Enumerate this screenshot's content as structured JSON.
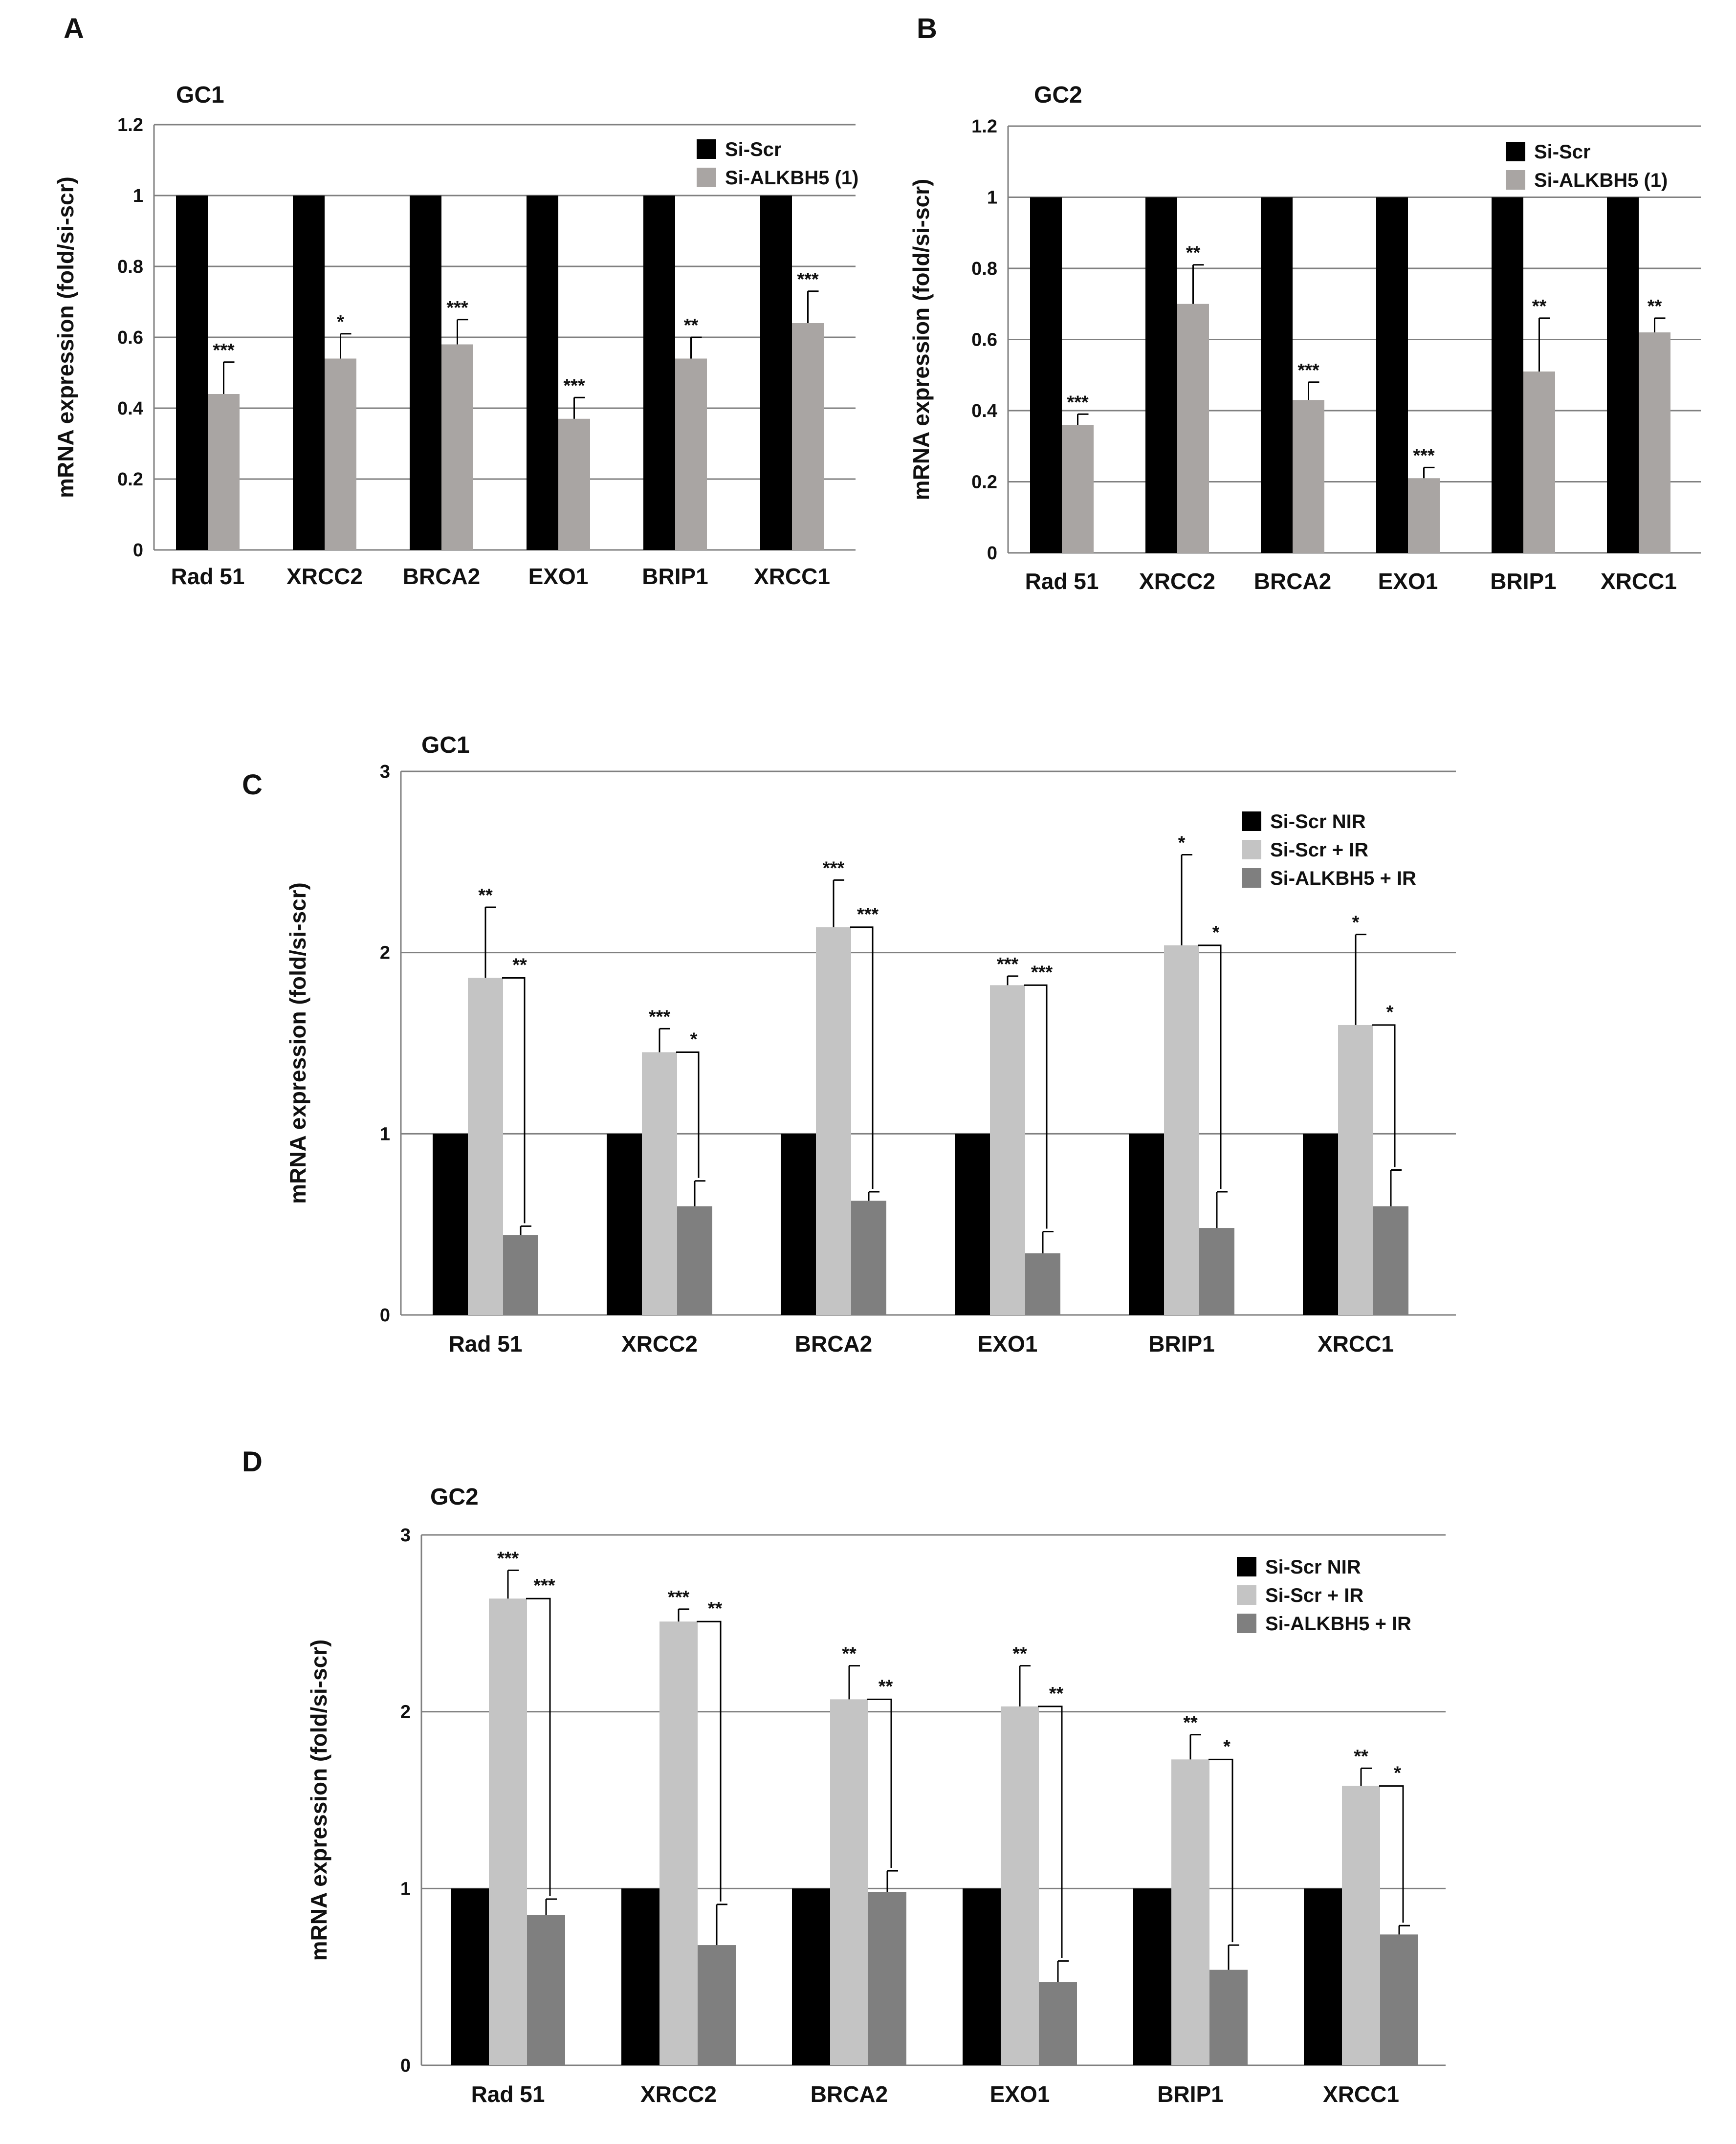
{
  "colors": {
    "si_scr": "#000000",
    "si_alkbh5": "#a9a5a3",
    "si_scr_nir": "#000000",
    "si_scr_ir": "#c4c4c4",
    "si_alkbh5_ir": "#7f7f7f"
  },
  "chart_data": [
    {
      "panel": "A",
      "type": "bar",
      "title": "GC1",
      "ylabel": "mRNA expression (fold/si-scr)",
      "xlabel": "",
      "ylim": [
        0,
        1.2
      ],
      "yticks": [
        "0",
        "0.2",
        "0.4",
        "0.6",
        "0.8",
        "1",
        "1.2"
      ],
      "grid": true,
      "legend_position": "top-right",
      "categories": [
        "Rad 51",
        "XRCC2",
        "BRCA2",
        "EXO1",
        "BRIP1",
        "XRCC1"
      ],
      "series": [
        {
          "name": "Si-Scr",
          "color_key": "si_scr",
          "values": [
            1,
            1,
            1,
            1,
            1,
            1
          ],
          "errors": [
            0,
            0,
            0,
            0,
            0,
            0
          ],
          "stars": [
            "",
            "",
            "",
            "",
            "",
            ""
          ]
        },
        {
          "name": "Si-ALKBH5 (1)",
          "color_key": "si_alkbh5",
          "values": [
            0.44,
            0.54,
            0.58,
            0.37,
            0.54,
            0.64
          ],
          "errors": [
            0.09,
            0.07,
            0.07,
            0.06,
            0.06,
            0.09
          ],
          "stars": [
            "***",
            "*",
            "***",
            "***",
            "**",
            "***"
          ]
        }
      ]
    },
    {
      "panel": "B",
      "type": "bar",
      "title": "GC2",
      "ylabel": "mRNA expression (fold/si-scr)",
      "xlabel": "",
      "ylim": [
        0,
        1.2
      ],
      "yticks": [
        "0",
        "0.2",
        "0.4",
        "0.6",
        "0.8",
        "1",
        "1.2"
      ],
      "grid": true,
      "legend_position": "top-right",
      "categories": [
        "Rad 51",
        "XRCC2",
        "BRCA2",
        "EXO1",
        "BRIP1",
        "XRCC1"
      ],
      "series": [
        {
          "name": "Si-Scr",
          "color_key": "si_scr",
          "values": [
            1,
            1,
            1,
            1,
            1,
            1
          ],
          "errors": [
            0,
            0,
            0,
            0,
            0,
            0
          ],
          "stars": [
            "",
            "",
            "",
            "",
            "",
            ""
          ]
        },
        {
          "name": "Si-ALKBH5 (1)",
          "color_key": "si_alkbh5",
          "values": [
            0.36,
            0.7,
            0.43,
            0.21,
            0.51,
            0.62
          ],
          "errors": [
            0.03,
            0.11,
            0.05,
            0.03,
            0.15,
            0.04
          ],
          "stars": [
            "***",
            "**",
            "***",
            "***",
            "**",
            "**"
          ]
        }
      ]
    },
    {
      "panel": "C",
      "type": "bar",
      "title": "GC1",
      "ylabel": "mRNA expression (fold/si-scr)",
      "xlabel": "",
      "ylim": [
        0,
        3
      ],
      "yticks": [
        "0",
        "1",
        "2",
        "3"
      ],
      "grid": true,
      "legend_position": "top-right",
      "categories": [
        "Rad 51",
        "XRCC2",
        "BRCA2",
        "EXO1",
        "BRIP1",
        "XRCC1"
      ],
      "series": [
        {
          "name": "Si-Scr NIR",
          "color_key": "si_scr_nir",
          "values": [
            1,
            1,
            1,
            1,
            1,
            1
          ],
          "errors": [
            0,
            0,
            0,
            0,
            0,
            0
          ],
          "stars": [
            "",
            "",
            "",
            "",
            "",
            ""
          ]
        },
        {
          "name": "Si-Scr + IR",
          "color_key": "si_scr_ir",
          "values": [
            1.86,
            1.45,
            2.14,
            1.82,
            2.04,
            1.6
          ],
          "errors": [
            0.39,
            0.13,
            0.26,
            0.05,
            0.5,
            0.5
          ],
          "stars": [
            "**",
            "***",
            "***",
            "***",
            "*",
            "*"
          ]
        },
        {
          "name": "Si-ALKBH5 + IR",
          "color_key": "si_alkbh5_ir",
          "values": [
            0.44,
            0.6,
            0.63,
            0.34,
            0.48,
            0.6
          ],
          "errors": [
            0.05,
            0.14,
            0.05,
            0.12,
            0.2,
            0.2
          ],
          "stars": [
            "",
            "",
            "",
            "",
            "",
            ""
          ]
        }
      ],
      "comparison_stars": [
        "**",
        "*",
        "***",
        "***",
        "*",
        "*"
      ]
    },
    {
      "panel": "D",
      "type": "bar",
      "title": "GC2",
      "ylabel": "mRNA expression (fold/si-scr)",
      "xlabel": "",
      "ylim": [
        0,
        3
      ],
      "yticks": [
        "0",
        "1",
        "2",
        "3"
      ],
      "grid": true,
      "legend_position": "top-right",
      "categories": [
        "Rad 51",
        "XRCC2",
        "BRCA2",
        "EXO1",
        "BRIP1",
        "XRCC1"
      ],
      "series": [
        {
          "name": "Si-Scr NIR",
          "color_key": "si_scr_nir",
          "values": [
            1,
            1,
            1,
            1,
            1,
            1
          ],
          "errors": [
            0,
            0,
            0,
            0,
            0,
            0
          ],
          "stars": [
            "",
            "",
            "",
            "",
            "",
            ""
          ]
        },
        {
          "name": "Si-Scr + IR",
          "color_key": "si_scr_ir",
          "values": [
            2.64,
            2.51,
            2.07,
            2.03,
            1.73,
            1.58
          ],
          "errors": [
            0.16,
            0.07,
            0.19,
            0.23,
            0.14,
            0.1
          ],
          "stars": [
            "***",
            "***",
            "**",
            "**",
            "**",
            "**"
          ]
        },
        {
          "name": "Si-ALKBH5 + IR",
          "color_key": "si_alkbh5_ir",
          "values": [
            0.85,
            0.68,
            0.98,
            0.47,
            0.54,
            0.74
          ],
          "errors": [
            0.09,
            0.23,
            0.12,
            0.12,
            0.14,
            0.05
          ],
          "stars": [
            "",
            "",
            "",
            "",
            "",
            ""
          ]
        }
      ],
      "comparison_stars": [
        "***",
        "**",
        "**",
        "**",
        "*",
        "*"
      ]
    }
  ]
}
